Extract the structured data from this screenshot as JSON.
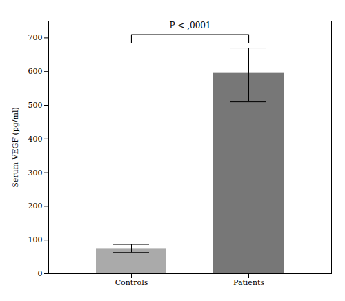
{
  "chart_data": {
    "type": "bar",
    "categories": [
      "Controls",
      "Patients"
    ],
    "values": [
      75,
      595
    ],
    "colors": [
      "#aaaaaa",
      "#777777"
    ],
    "errors": {
      "lower": [
        12,
        85
      ],
      "upper": [
        12,
        75
      ]
    },
    "ylabel": "Serum VEGF (pg/ml)",
    "ylim": [
      0,
      750
    ],
    "yticks": [
      0,
      100,
      200,
      300,
      400,
      500,
      600,
      700
    ],
    "grid": false,
    "annotations": [
      {
        "text": "P < ,0001",
        "y": 728,
        "bracket": {
          "y": 710,
          "drop": 25,
          "from": "Controls",
          "to": "Patients"
        }
      }
    ]
  }
}
